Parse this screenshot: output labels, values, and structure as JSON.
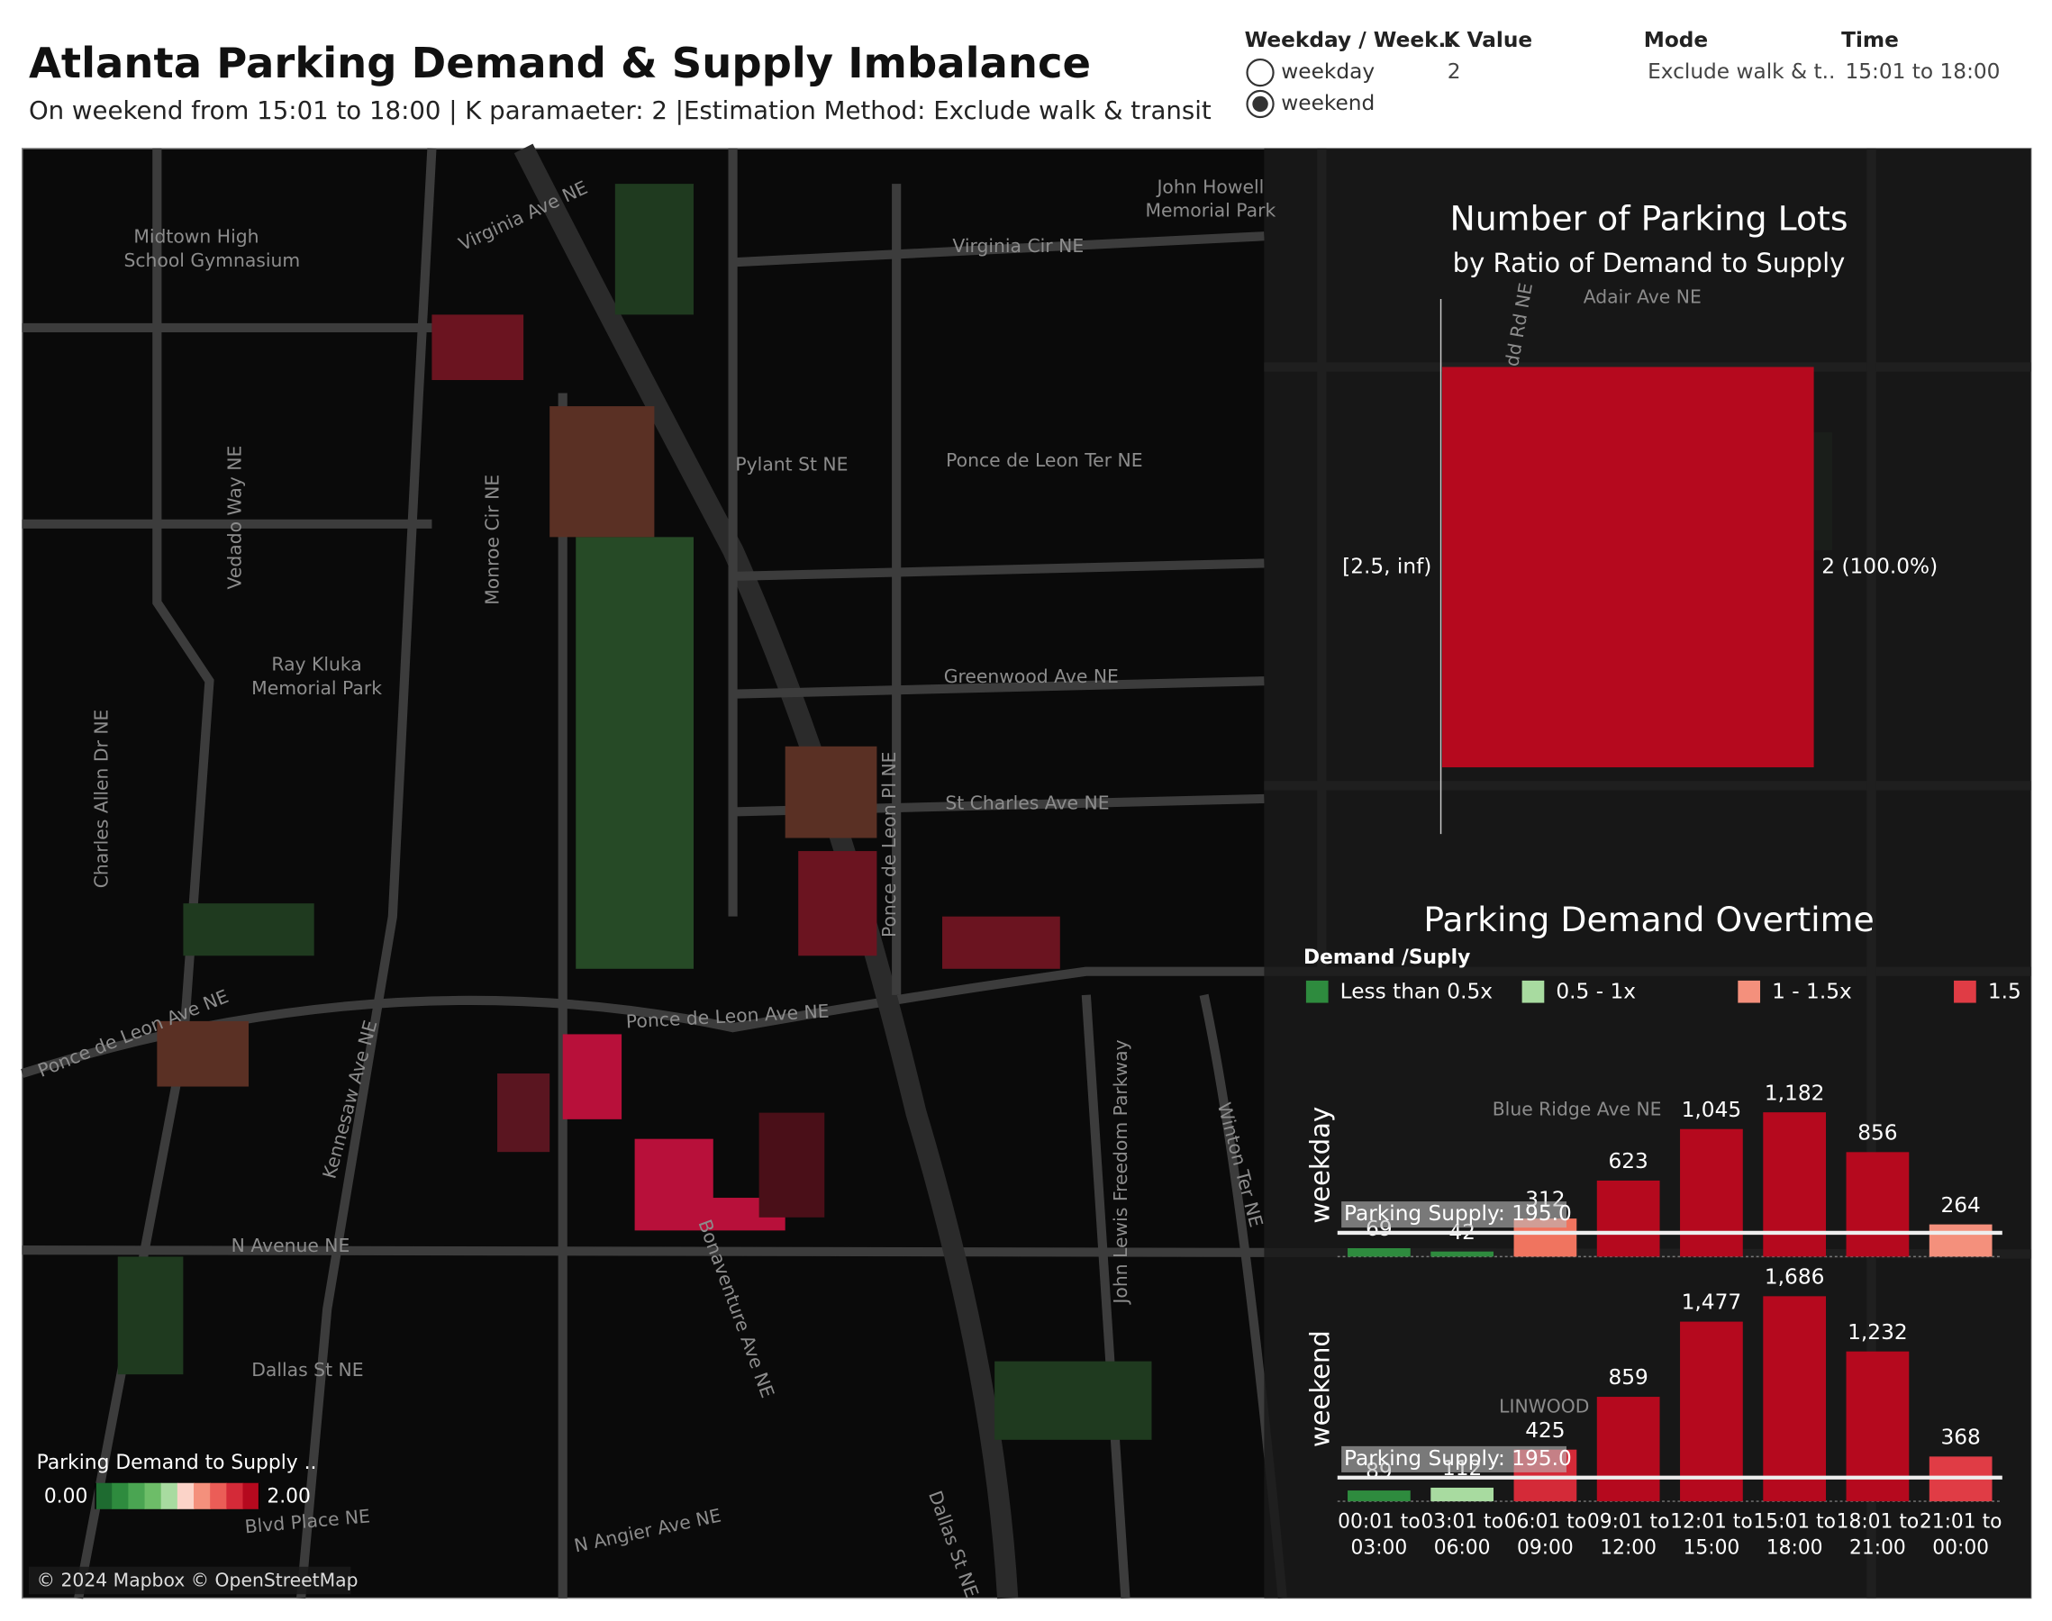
{
  "header": {
    "title": "Atlanta Parking Demand & Supply Imbalance",
    "subtitle": "On weekend from 15:01 to 18:00  | K paramaeter: 2 |Estimation Method: Exclude walk & transit"
  },
  "filters": [
    {
      "label": "Weekday / Week..",
      "options": [
        "weekday",
        "weekend"
      ],
      "selected": 1
    },
    {
      "label": "K Value",
      "value": "2"
    },
    {
      "label": "Mode",
      "value": "Exclude walk & t.."
    },
    {
      "label": "Time",
      "value": "15:01 to 18:00"
    }
  ],
  "map": {
    "labels": [
      "Virginia Ave NE",
      "Virginia Cir NE",
      "John Howell",
      "Memorial Park",
      "Midtown High",
      "School Gymnasium",
      "Pylant St NE",
      "Ponce de Leon Ter NE",
      "Vedado Way NE",
      "Monroe Cir NE",
      "Ray Kluka",
      "Memorial Park",
      "Greenwood Ave NE",
      "St Charles Ave NE",
      "Charles Allen Dr NE",
      "Ponce de Leon Pl NE",
      "Ponce de Leon Ave NE",
      "Ponce de Leon Ave NE",
      "Kennesaw Ave NE",
      "N Avenue NE",
      "Dallas St NE",
      "Bonaventure Ave NE",
      "John Lewis Freedom Parkway",
      "Blvd Place NE",
      "Winton Ter NE",
      "Dallas St NE",
      "N Angier Ave NE",
      "Adair Ave NE",
      "Todd Rd NE",
      "Blue Ridge Ave NE",
      "LINWOOD"
    ],
    "colorbar": {
      "title": "Parking Demand to Supply ..",
      "ticks": [
        {
          "value": 0,
          "label": "0.00"
        },
        {
          "value": 2,
          "label": "2.00"
        }
      ]
    },
    "attribution": "© 2024 Mapbox © OpenStreetMap"
  },
  "chart_data": [
    {
      "type": "hbar",
      "title": "Number of Parking Lots",
      "subtitle": "by Ratio of Demand to Supply",
      "categories": [
        "[2.5, inf)"
      ],
      "values": [
        2
      ],
      "value_labels": [
        "2 (100.0%)"
      ],
      "color": "#b5091e",
      "xlim": [
        0,
        2
      ]
    },
    {
      "type": "facet-bar",
      "title": "Parking Demand Overtime",
      "legend": {
        "title": "Demand /Suply",
        "items": [
          {
            "name": "Less than 0.5x",
            "color": "#2e8b3e"
          },
          {
            "name": "0.5 - 1x",
            "color": "#a8dba0"
          },
          {
            "name": "1 - 1.5x",
            "color": "#f4907c"
          },
          {
            "name": "1.5",
            "color": "#e03c45"
          }
        ]
      },
      "categories": [
        "00:01 to 03:00",
        "03:01 to 06:00",
        "06:01 to 09:00",
        "09:01 to 12:00",
        "12:01 to 15:00",
        "15:01 to 18:00",
        "18:01 to 21:00",
        "21:01 to 00:00"
      ],
      "reference_line": {
        "value": 195,
        "label": "Parking Supply: 195.0"
      },
      "facets": [
        {
          "name": "weekday",
          "ylim": [
            0,
            1500
          ],
          "values": [
            69,
            42,
            312,
            623,
            1045,
            1182,
            856,
            264
          ],
          "value_labels": [
            "69",
            "42",
            "312",
            "623",
            "1,045",
            "1,182",
            "856",
            "264"
          ],
          "colors": [
            "#2e8b3e",
            "#2e8b3e",
            "#f0745f",
            "#b5091e",
            "#b5091e",
            "#b5091e",
            "#b5091e",
            "#f4907c"
          ]
        },
        {
          "name": "weekend",
          "ylim": [
            0,
            1850
          ],
          "values": [
            89,
            112,
            425,
            859,
            1477,
            1686,
            1232,
            368
          ],
          "value_labels": [
            "89",
            "112",
            "425",
            "859",
            "1,477",
            "1,686",
            "1,232",
            "368"
          ],
          "colors": [
            "#2e8b3e",
            "#a8dba0",
            "#d42a38",
            "#b5091e",
            "#b5091e",
            "#b5091e",
            "#b5091e",
            "#e03c45"
          ]
        }
      ]
    }
  ]
}
